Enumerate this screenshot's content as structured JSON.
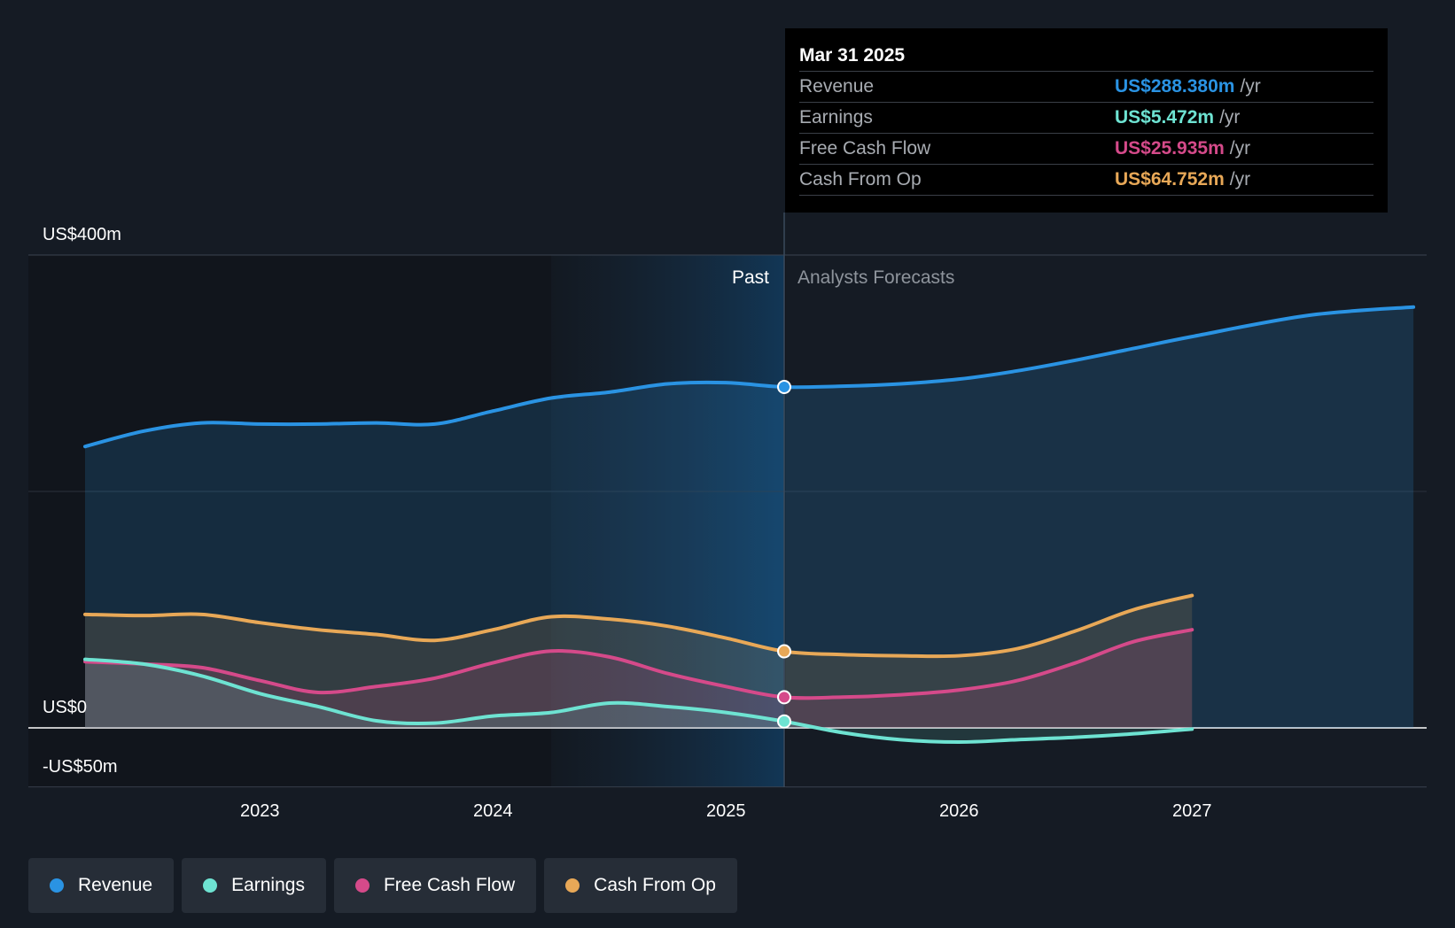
{
  "chart_data": {
    "type": "area",
    "y_axis": {
      "ylim": [
        -50,
        400
      ],
      "tick_labels": {
        "top": "US$400m",
        "zero": "US$0",
        "bottom": "-US$50m"
      }
    },
    "x_axis": {
      "ticks": [
        "2023",
        "2024",
        "2025",
        "2026",
        "2027"
      ],
      "xlim": [
        2022.25,
        2027.95
      ]
    },
    "past_label": "Past",
    "forecast_label": "Analysts Forecasts",
    "divider_x": 2025.25,
    "highlight_start_x": 2024.25,
    "series": [
      {
        "name": "Revenue",
        "color": "#2a93e3",
        "points": [
          [
            2022.25,
            238
          ],
          [
            2022.5,
            251
          ],
          [
            2022.75,
            258
          ],
          [
            2023.0,
            257
          ],
          [
            2023.25,
            257
          ],
          [
            2023.5,
            258
          ],
          [
            2023.75,
            257
          ],
          [
            2024.0,
            268
          ],
          [
            2024.25,
            279
          ],
          [
            2024.5,
            284
          ],
          [
            2024.75,
            291
          ],
          [
            2025.0,
            292
          ],
          [
            2025.25,
            288.38
          ],
          [
            2025.5,
            289
          ],
          [
            2025.75,
            291
          ],
          [
            2026.0,
            295
          ],
          [
            2026.25,
            302
          ],
          [
            2026.5,
            311
          ],
          [
            2026.75,
            321
          ],
          [
            2027.0,
            331
          ],
          [
            2027.5,
            349
          ],
          [
            2027.95,
            356
          ]
        ]
      },
      {
        "name": "Cash From Op",
        "color": "#e8a857",
        "points": [
          [
            2022.25,
            96
          ],
          [
            2022.5,
            95
          ],
          [
            2022.75,
            96
          ],
          [
            2023.0,
            89
          ],
          [
            2023.25,
            83
          ],
          [
            2023.5,
            79
          ],
          [
            2023.75,
            74
          ],
          [
            2024.0,
            83
          ],
          [
            2024.25,
            94
          ],
          [
            2024.5,
            92
          ],
          [
            2024.75,
            86
          ],
          [
            2025.0,
            76
          ],
          [
            2025.25,
            64.75
          ],
          [
            2025.5,
            62
          ],
          [
            2025.75,
            61
          ],
          [
            2026.0,
            61
          ],
          [
            2026.25,
            67
          ],
          [
            2026.5,
            82
          ],
          [
            2026.75,
            100
          ],
          [
            2027.0,
            112
          ]
        ]
      },
      {
        "name": "Free Cash Flow",
        "color": "#d54a8a",
        "points": [
          [
            2022.25,
            56
          ],
          [
            2022.5,
            54
          ],
          [
            2022.75,
            51
          ],
          [
            2023.0,
            40
          ],
          [
            2023.25,
            30
          ],
          [
            2023.5,
            35
          ],
          [
            2023.75,
            42
          ],
          [
            2024.0,
            55
          ],
          [
            2024.25,
            65
          ],
          [
            2024.5,
            60
          ],
          [
            2024.75,
            46
          ],
          [
            2025.0,
            35
          ],
          [
            2025.25,
            25.94
          ],
          [
            2025.5,
            26
          ],
          [
            2025.75,
            28
          ],
          [
            2026.0,
            32
          ],
          [
            2026.25,
            40
          ],
          [
            2026.5,
            55
          ],
          [
            2026.75,
            73
          ],
          [
            2027.0,
            83
          ]
        ]
      },
      {
        "name": "Earnings",
        "color": "#6ee3d2",
        "points": [
          [
            2022.25,
            58
          ],
          [
            2022.5,
            54
          ],
          [
            2022.75,
            44
          ],
          [
            2023.0,
            29
          ],
          [
            2023.25,
            18
          ],
          [
            2023.5,
            6
          ],
          [
            2023.75,
            4
          ],
          [
            2024.0,
            10
          ],
          [
            2024.25,
            13
          ],
          [
            2024.5,
            21
          ],
          [
            2024.75,
            18
          ],
          [
            2025.0,
            13
          ],
          [
            2025.25,
            5.47
          ],
          [
            2025.5,
            -4
          ],
          [
            2025.75,
            -10
          ],
          [
            2026.0,
            -12
          ],
          [
            2026.25,
            -10
          ],
          [
            2026.5,
            -8
          ],
          [
            2026.75,
            -5
          ],
          [
            2027.0,
            -1
          ]
        ]
      }
    ]
  },
  "tooltip": {
    "date": "Mar 31 2025",
    "unit": "/yr",
    "rows": [
      {
        "label": "Revenue",
        "value": "US$288.380m",
        "color": "#2a93e3"
      },
      {
        "label": "Earnings",
        "value": "US$5.472m",
        "color": "#6ee3d2"
      },
      {
        "label": "Free Cash Flow",
        "value": "US$25.935m",
        "color": "#d54a8a"
      },
      {
        "label": "Cash From Op",
        "value": "US$64.752m",
        "color": "#e8a857"
      }
    ]
  },
  "legend": [
    {
      "label": "Revenue",
      "color": "#2a93e3"
    },
    {
      "label": "Earnings",
      "color": "#6ee3d2"
    },
    {
      "label": "Free Cash Flow",
      "color": "#d54a8a"
    },
    {
      "label": "Cash From Op",
      "color": "#e8a857"
    }
  ]
}
